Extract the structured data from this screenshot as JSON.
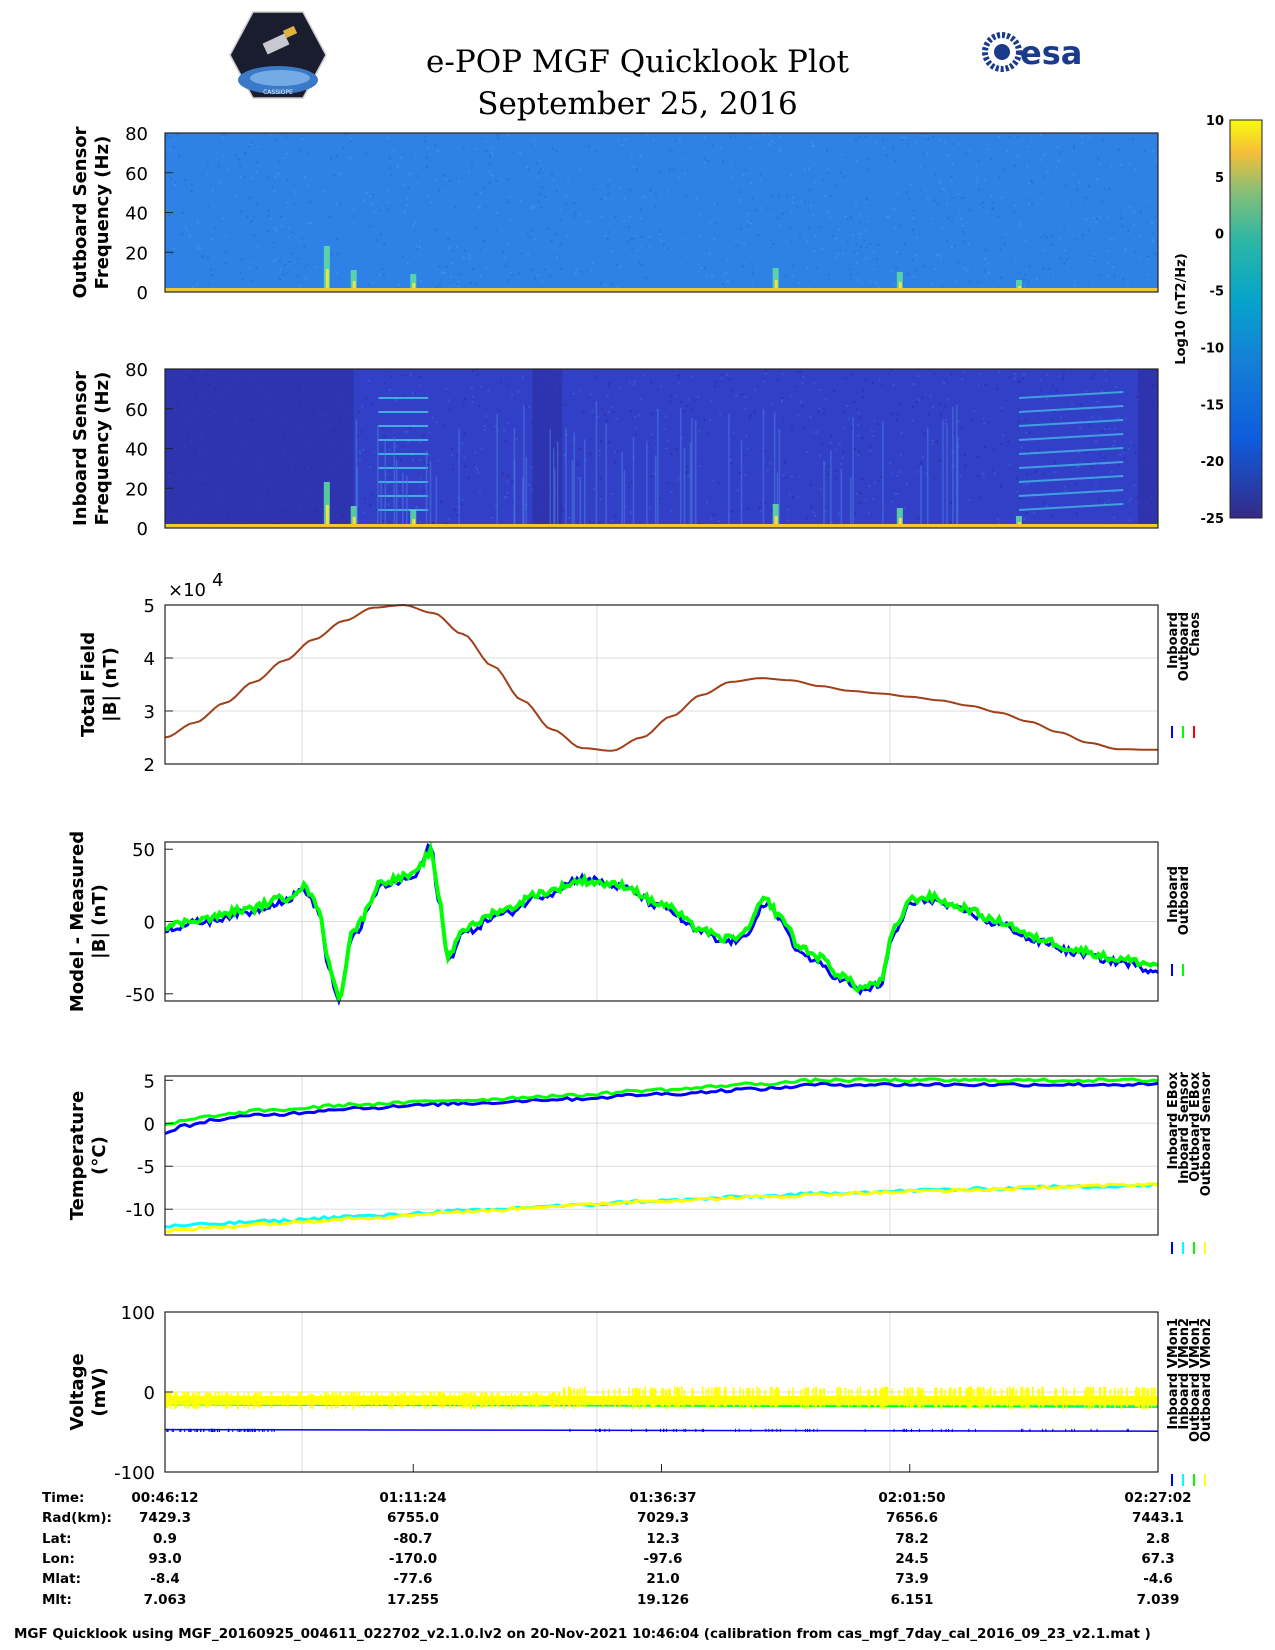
{
  "header": {
    "title": "e-POP MGF Quicklook Plot",
    "date": "September 25, 2016",
    "logo_left_text": "CASSIOPE",
    "logo_right_text": "esa"
  },
  "footer": {
    "text": "MGF Quicklook using MGF_20160925_004611_022702_v2.1.0.lv2 on 20-Nov-2021 10:46:04 (calibration from cas_mgf_7day_cal_2016_09_23_v2.1.mat )"
  },
  "colors": {
    "inboard": "#0000ff",
    "outboard": "#00ff00",
    "chaos": "#ff0000",
    "total_field_line": "#a0401a",
    "cyan": "#00ffff",
    "yellow": "#ffff00",
    "spectro_bg_outboard": "#2e82e6",
    "spectro_bg_inboard": "#3240c8"
  },
  "chart_data": [
    {
      "type": "heatmap",
      "name": "outboard-spectrogram",
      "ylabel": [
        "Outboard Sensor",
        "Frequency (Hz)"
      ],
      "ylim": [
        0,
        80
      ],
      "yticks": [
        "80",
        "60",
        "40",
        "20",
        "0"
      ],
      "colorbar": {
        "label": "Log10 (nT2/Hz)",
        "range": [
          -25,
          10
        ],
        "ticks": [
          "10",
          "5",
          "0",
          "-5",
          "-10",
          "-15",
          "-20",
          "-25"
        ]
      }
    },
    {
      "type": "heatmap",
      "name": "inboard-spectrogram",
      "ylabel": [
        "Inboard Sensor",
        "Frequency (Hz)"
      ],
      "ylim": [
        0,
        80
      ],
      "yticks": [
        "80",
        "60",
        "40",
        "20",
        "0"
      ]
    },
    {
      "type": "line",
      "name": "total-field",
      "ylabel": [
        "Total Field",
        "|B| (nT)"
      ],
      "ylim": [
        2,
        5
      ],
      "yticks": [
        "5",
        "4",
        "3",
        "2"
      ],
      "multiplier": "×10",
      "multiplier_exp": "4",
      "legend": [
        "Inboard",
        "Outboard",
        "Chaos"
      ],
      "x": [
        0,
        3,
        6,
        9,
        12,
        15,
        18,
        21,
        24,
        27,
        30,
        33,
        36,
        39,
        42,
        45,
        48,
        51,
        54,
        57,
        60,
        63,
        66,
        69,
        72,
        75,
        78,
        81,
        84,
        87,
        90,
        93,
        96,
        99,
        100
      ],
      "series": [
        {
          "name": "Chaos",
          "values": [
            2.5,
            2.78,
            3.15,
            3.55,
            3.95,
            4.35,
            4.7,
            4.95,
            5.0,
            4.85,
            4.45,
            3.85,
            3.2,
            2.65,
            2.3,
            2.25,
            2.5,
            2.9,
            3.3,
            3.55,
            3.62,
            3.58,
            3.47,
            3.38,
            3.33,
            3.27,
            3.2,
            3.1,
            2.97,
            2.8,
            2.6,
            2.4,
            2.28,
            2.27,
            2.27
          ]
        }
      ]
    },
    {
      "type": "line",
      "name": "model-minus-measured",
      "ylabel": [
        "Model - Measured",
        "|B| (nT)"
      ],
      "ylim": [
        -55,
        55
      ],
      "yticks": [
        "50",
        "0",
        "-50"
      ],
      "legend": [
        "Inboard",
        "Outboard"
      ],
      "x": [
        0,
        4,
        8,
        12,
        14,
        15.5,
        16.5,
        17.5,
        19,
        22,
        25,
        26.8,
        27.5,
        28.5,
        30,
        34,
        38,
        42,
        46,
        50,
        54,
        56,
        58,
        60.5,
        62,
        64,
        66,
        68,
        70,
        72,
        73.5,
        75,
        77,
        80,
        84,
        88,
        92,
        96,
        100
      ],
      "series": [
        {
          "name": "Outboard",
          "values": [
            -3,
            2,
            8,
            16,
            24,
            10,
            -30,
            -52,
            -5,
            28,
            32,
            48,
            20,
            -24,
            -5,
            8,
            20,
            28,
            25,
            12,
            -5,
            -12,
            -10,
            15,
            3,
            -18,
            -25,
            -37,
            -46,
            -42,
            -5,
            15,
            17,
            10,
            0,
            -12,
            -20,
            -26,
            -30
          ]
        },
        {
          "name": "Inboard",
          "values": [
            -5,
            0,
            6,
            14,
            22,
            7,
            -33,
            -55,
            -8,
            25,
            30,
            52,
            17,
            -27,
            -8,
            5,
            18,
            30,
            24,
            10,
            -7,
            -14,
            -13,
            12,
            0,
            -22,
            -30,
            -40,
            -48,
            -44,
            -8,
            12,
            15,
            8,
            -2,
            -14,
            -22,
            -28,
            -34
          ]
        }
      ]
    },
    {
      "type": "line",
      "name": "temperature",
      "ylabel": [
        "Temperature",
        "(°C)"
      ],
      "ylim": [
        -13,
        5.5
      ],
      "yticks": [
        "5",
        "0",
        "-5",
        "-10"
      ],
      "legend": [
        "Inboard EBox",
        "Inboard Sensor",
        "Outboard EBox",
        "Outboard Sensor"
      ],
      "x": [
        0,
        2,
        5,
        10,
        20,
        30,
        40,
        50,
        60,
        66,
        70,
        80,
        90,
        100
      ],
      "series": [
        {
          "name": "Inboard EBox",
          "values": [
            -1.2,
            -0.3,
            0.4,
            1.0,
            1.8,
            2.3,
            2.8,
            3.4,
            4.0,
            4.5,
            4.5,
            4.5,
            4.5,
            4.5
          ]
        },
        {
          "name": "Inboard Sensor",
          "values": [
            -12.0,
            -11.9,
            -11.7,
            -11.4,
            -10.8,
            -10.2,
            -9.6,
            -9.0,
            -8.5,
            -8.2,
            -8.0,
            -7.7,
            -7.4,
            -7.2
          ]
        },
        {
          "name": "Outboard EBox",
          "values": [
            -0.2,
            0.3,
            0.9,
            1.5,
            2.2,
            2.7,
            3.2,
            3.9,
            4.6,
            5.0,
            5.0,
            5.0,
            5.0,
            5.0
          ]
        },
        {
          "name": "Outboard Sensor",
          "values": [
            -12.6,
            -12.4,
            -12.1,
            -11.7,
            -11.0,
            -10.3,
            -9.6,
            -9.0,
            -8.6,
            -8.3,
            -8.1,
            -7.8,
            -7.4,
            -7.1
          ]
        }
      ]
    },
    {
      "type": "line",
      "name": "voltage",
      "ylabel": [
        "Voltage",
        "(mV)"
      ],
      "ylim": [
        -100,
        100
      ],
      "yticks": [
        "100",
        "0",
        "-100"
      ],
      "legend": [
        "Inboard VMon1",
        "Inboard VMon2",
        "Outboard VMon1",
        "Outboard VMon2"
      ],
      "x": [
        0,
        100
      ],
      "series": [
        {
          "name": "Inboard VMon1",
          "values": [
            -47,
            -49
          ]
        },
        {
          "name": "Inboard VMon2",
          "values": [
            -15,
            -18
          ]
        },
        {
          "name": "Outboard VMon1",
          "values": [
            -10,
            -16
          ]
        },
        {
          "name": "Outboard VMon2",
          "values": [
            -5,
            -3
          ]
        }
      ]
    }
  ],
  "orbit_info": {
    "row_labels": [
      "Time:",
      "Rad(km):",
      "Lat:",
      "Lon:",
      "Mlat:",
      "Mlt:"
    ],
    "columns": [
      [
        "00:46:12",
        "7429.3",
        "0.9",
        "93.0",
        "-8.4",
        "7.063"
      ],
      [
        "01:11:24",
        "6755.0",
        "-80.7",
        "-170.0",
        "-77.6",
        "17.255"
      ],
      [
        "01:36:37",
        "7029.3",
        "12.3",
        "-97.6",
        "21.0",
        "19.126"
      ],
      [
        "02:01:50",
        "7656.6",
        "78.2",
        "24.5",
        "73.9",
        "6.151"
      ],
      [
        "02:27:02",
        "7443.1",
        "2.8",
        "67.3",
        "-4.6",
        "7.039"
      ]
    ]
  }
}
